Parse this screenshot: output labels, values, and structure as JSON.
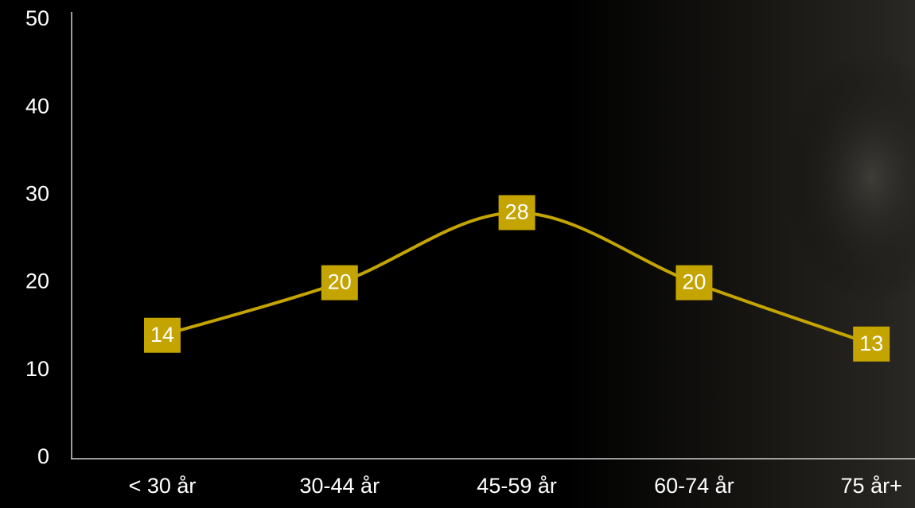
{
  "chart_data": {
    "type": "line",
    "categories": [
      "< 30 år",
      "30-44 år",
      "45-59 år",
      "60-74 år",
      "75 år+"
    ],
    "values": [
      14,
      20,
      28,
      20,
      13
    ],
    "color": "#c4a400",
    "ylim": [
      0,
      50
    ],
    "yticks": [
      0,
      10,
      20,
      30,
      40,
      50
    ]
  }
}
